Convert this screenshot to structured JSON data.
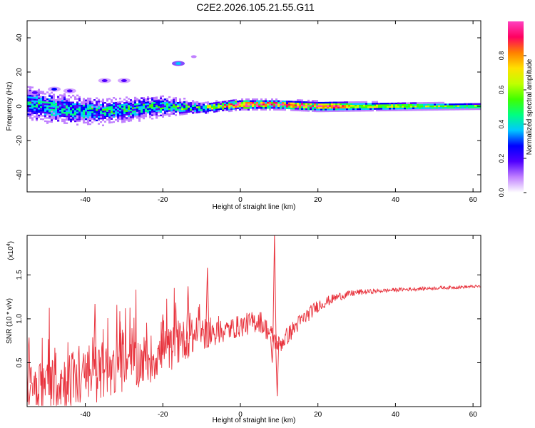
{
  "title": "C2E2.2026.105.21.55.G11",
  "chart_data": [
    {
      "type": "heatmap",
      "name": "spectrogram",
      "xlabel": "Height of straight line (km)",
      "ylabel": "Frequency (Hz)",
      "xlim": [
        -55,
        62
      ],
      "ylim": [
        -50,
        50
      ],
      "xticks": [
        -40,
        -20,
        0,
        20,
        40,
        60
      ],
      "yticks": [
        -40,
        -20,
        0,
        20,
        40
      ],
      "colorbar": {
        "label": "Normalized spectral amplitude",
        "range": [
          0,
          1
        ],
        "ticks": [
          "0.0",
          "0.2",
          "0.4",
          "0.6",
          "0.8"
        ],
        "colors": [
          "#ffffff",
          "#c080ff",
          "#5000ff",
          "#0000ff",
          "#00c8ff",
          "#00ff80",
          "#40ff00",
          "#c0ff00",
          "#ffe000",
          "#ff8000",
          "#ff0060",
          "#ff40c0"
        ]
      },
      "band": {
        "center_hz": [
          [
            -55,
            2
          ],
          [
            -45,
            -2
          ],
          [
            -35,
            -3
          ],
          [
            -20,
            0
          ],
          [
            -10,
            -1
          ],
          [
            0,
            1
          ],
          [
            10,
            1
          ],
          [
            20,
            0
          ],
          [
            40,
            0
          ],
          [
            62,
            0
          ]
        ],
        "halfwidth_hz": [
          [
            -55,
            12
          ],
          [
            -40,
            10
          ],
          [
            -20,
            7
          ],
          [
            -10,
            4
          ],
          [
            0,
            3
          ],
          [
            20,
            3
          ],
          [
            62,
            2
          ]
        ],
        "peak_amplitude": [
          [
            -55,
            0.35
          ],
          [
            -40,
            0.35
          ],
          [
            -20,
            0.4
          ],
          [
            -5,
            0.55
          ],
          [
            0,
            0.95
          ],
          [
            10,
            0.8
          ],
          [
            20,
            0.85
          ],
          [
            26,
            0.9
          ],
          [
            30,
            0.65
          ],
          [
            62,
            0.55
          ]
        ]
      },
      "blobs": [
        {
          "x": -16,
          "y": 25,
          "amp": 0.35
        },
        {
          "x": -12,
          "y": 29,
          "amp": 0.15
        },
        {
          "x": -35,
          "y": 15,
          "amp": 0.2
        },
        {
          "x": -30,
          "y": 15,
          "amp": 0.2
        },
        {
          "x": -48,
          "y": 10,
          "amp": 0.25
        },
        {
          "x": -44,
          "y": 9,
          "amp": 0.2
        },
        {
          "x": -53,
          "y": 8,
          "amp": 0.2
        }
      ]
    },
    {
      "type": "line",
      "name": "snr",
      "color": "#e8323c",
      "xlabel": "Height of straight line (km)",
      "ylabel": "SNR (10 * v/v)",
      "multiplier": "(x10",
      "multiplier_exp": "4",
      "multiplier_close": ")",
      "xlim": [
        -55,
        62
      ],
      "ylim": [
        0,
        1.95
      ],
      "xticks": [
        -40,
        -20,
        0,
        20,
        40,
        60
      ],
      "yticks": [
        "0.5",
        "1.0",
        "1.5"
      ],
      "envelope": [
        [
          -55,
          0.25
        ],
        [
          -40,
          0.32
        ],
        [
          -30,
          0.45
        ],
        [
          -20,
          0.6
        ],
        [
          -15,
          0.75
        ],
        [
          -10,
          0.82
        ],
        [
          -5,
          0.85
        ],
        [
          0,
          0.92
        ],
        [
          5,
          0.98
        ],
        [
          10,
          0.7
        ],
        [
          15,
          0.95
        ],
        [
          20,
          1.15
        ],
        [
          25,
          1.25
        ],
        [
          30,
          1.3
        ],
        [
          40,
          1.33
        ],
        [
          50,
          1.35
        ],
        [
          62,
          1.37
        ]
      ],
      "noise": [
        [
          -55,
          0.2
        ],
        [
          -40,
          0.2
        ],
        [
          -25,
          0.18
        ],
        [
          -15,
          0.15
        ],
        [
          -5,
          0.08
        ],
        [
          5,
          0.08
        ],
        [
          15,
          0.06
        ],
        [
          25,
          0.03
        ],
        [
          35,
          0.015
        ],
        [
          62,
          0.01
        ]
      ],
      "spikes": [
        {
          "x": -37.5,
          "y": 1.17
        },
        {
          "x": -13.5,
          "y": 1.37
        },
        {
          "x": -8.5,
          "y": 1.58
        },
        {
          "x": 8.8,
          "y": 1.95
        },
        {
          "x": 9.5,
          "y": 0.12
        },
        {
          "x": 8.2,
          "y": 0.5
        },
        {
          "x": -54.5,
          "y": 0.02
        },
        {
          "x": -31,
          "y": 0.97
        },
        {
          "x": -20,
          "y": 1.05
        }
      ]
    }
  ]
}
